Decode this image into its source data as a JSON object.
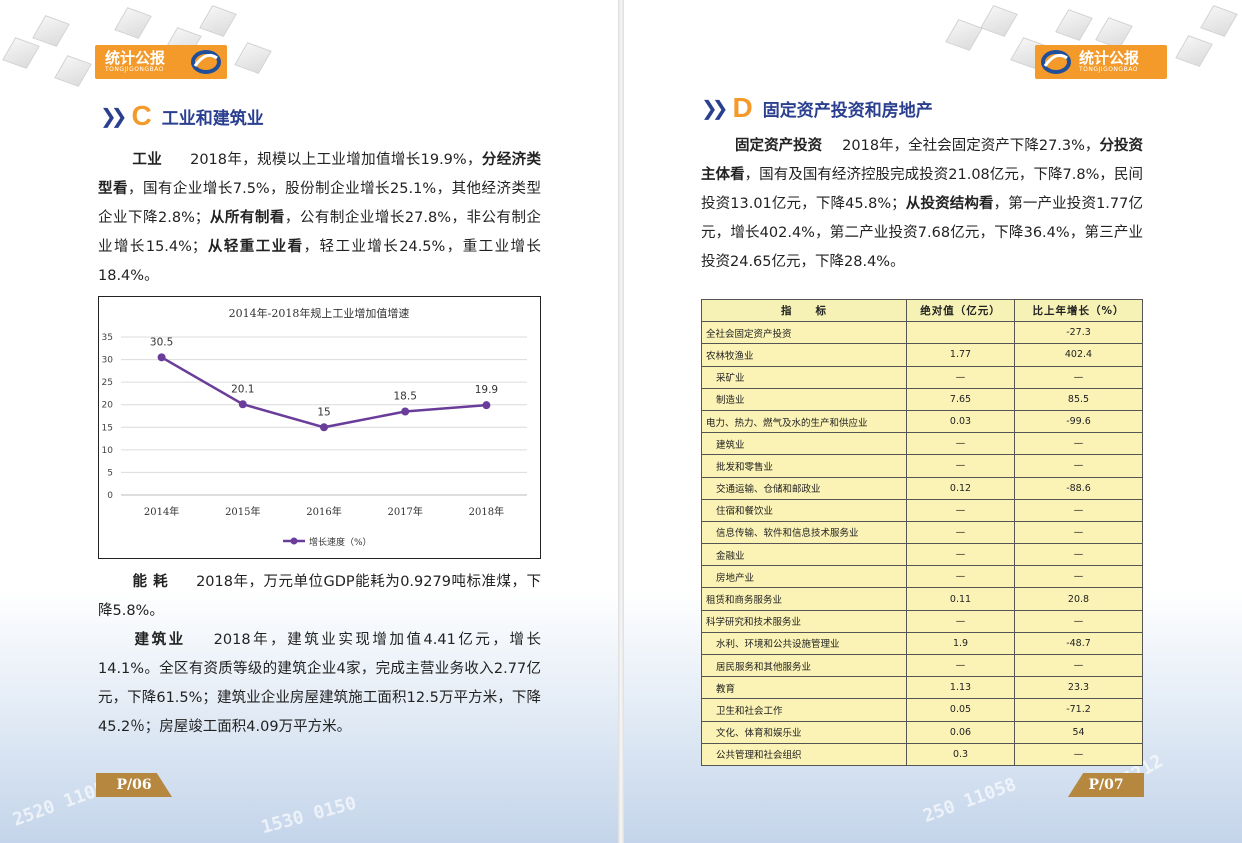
{
  "logo": {
    "title": "统计公报",
    "subtitle": "TONGJIGONGBAO"
  },
  "left": {
    "section": {
      "letter": "C",
      "title": "工业和建筑业"
    },
    "para_industry": {
      "label": "工业",
      "s1": "2018年，规模以上工业增加值增长19.9%，",
      "k1": "分经济类型看",
      "s2": "，国有企业增长7.5%，股份制企业增长25.1%，其他经济类型企业下降2.8%；",
      "k2": "从所有制看",
      "s3": "，公有制企业增长27.8%，非公有制企业增长15.4%；",
      "k3": "从轻重工业看",
      "s4": "，轻工业增长24.5%，重工业增长18.4%。"
    },
    "para_energy": {
      "label": "能 耗",
      "text": "2018年，万元单位GDP能耗为0.9279吨标准煤，下降5.8%。"
    },
    "para_construction": {
      "label": "建筑业",
      "text": "2018年，建筑业实现增加值4.41亿元，增长14.1%。全区有资质等级的建筑企业4家，完成主营业务收入2.77亿元，下降61.5%；建筑业企业房屋建筑施工面积12.5万平方米，下降45.2％；房屋竣工面积4.09万平方米。"
    },
    "page_number": "P/06"
  },
  "chart_data": {
    "type": "line",
    "title": "2014年-2018年规上工业增加值增速",
    "categories": [
      "2014年",
      "2015年",
      "2016年",
      "2017年",
      "2018年"
    ],
    "series": [
      {
        "name": "增长速度（%）",
        "values": [
          30.5,
          20.1,
          15,
          18.5,
          19.9
        ]
      }
    ],
    "data_labels": [
      "30.5",
      "20.1",
      "15",
      "18.5",
      "19.9"
    ],
    "yticks": [
      "0",
      "5",
      "10",
      "15",
      "20",
      "25",
      "30",
      "35"
    ],
    "ylim": [
      0,
      35
    ],
    "grid": true,
    "legend": "bottom",
    "color": "#6a3d9a"
  },
  "right": {
    "section": {
      "letter": "D",
      "title": "固定资产投资和房地产"
    },
    "para_invest": {
      "label": "固定资产投资",
      "s1": "2018年，全社会固定资产下降27.3%，",
      "k1": "分投资主体看",
      "s2": "，国有及国有经济控股完成投资21.08亿元，下降7.8%，民间投资13.01亿元，下降45.8%；",
      "k2": "从投资结构看",
      "s3": "，第一产业投资1.77亿元，增长402.4%，第二产业投资7.68亿元，下降36.4%，第三产业投资24.65亿元，下降28.4%。"
    },
    "table": {
      "headers": [
        "指　　标",
        "绝对值（亿元）",
        "比上年增长（%）"
      ],
      "rows": [
        {
          "name": "全社会固定资产投资",
          "value": "",
          "growth": "-27.3",
          "sub": false
        },
        {
          "name": "农林牧渔业",
          "value": "1.77",
          "growth": "402.4",
          "sub": false
        },
        {
          "name": "采矿业",
          "value": "—",
          "growth": "—",
          "sub": true
        },
        {
          "name": "制造业",
          "value": "7.65",
          "growth": "85.5",
          "sub": true
        },
        {
          "name": "电力、热力、燃气及水的生产和供应业",
          "value": "0.03",
          "growth": "-99.6",
          "sub": false
        },
        {
          "name": "建筑业",
          "value": "—",
          "growth": "—",
          "sub": true
        },
        {
          "name": "批发和零售业",
          "value": "—",
          "growth": "—",
          "sub": true
        },
        {
          "name": "交通运输、仓储和邮政业",
          "value": "0.12",
          "growth": "-88.6",
          "sub": true
        },
        {
          "name": "住宿和餐饮业",
          "value": "—",
          "growth": "—",
          "sub": true
        },
        {
          "name": "信息传输、软件和信息技术服务业",
          "value": "—",
          "growth": "—",
          "sub": true
        },
        {
          "name": "金融业",
          "value": "—",
          "growth": "—",
          "sub": true
        },
        {
          "name": "房地产业",
          "value": "—",
          "growth": "—",
          "sub": true
        },
        {
          "name": "租赁和商务服务业",
          "value": "0.11",
          "growth": "20.8",
          "sub": false
        },
        {
          "name": "科学研究和技术服务业",
          "value": "—",
          "growth": "—",
          "sub": false
        },
        {
          "name": "水利、环境和公共设施管理业",
          "value": "1.9",
          "growth": "-48.7",
          "sub": true
        },
        {
          "name": "居民服务和其他服务业",
          "value": "—",
          "growth": "—",
          "sub": true
        },
        {
          "name": "教育",
          "value": "1.13",
          "growth": "23.3",
          "sub": true
        },
        {
          "name": "卫生和社会工作",
          "value": "0.05",
          "growth": "-71.2",
          "sub": true
        },
        {
          "name": "文化、体育和娱乐业",
          "value": "0.06",
          "growth": "54",
          "sub": true
        },
        {
          "name": "公共管理和社会组织",
          "value": "0.3",
          "growth": "—",
          "sub": true
        }
      ]
    },
    "page_number": "P/07"
  }
}
